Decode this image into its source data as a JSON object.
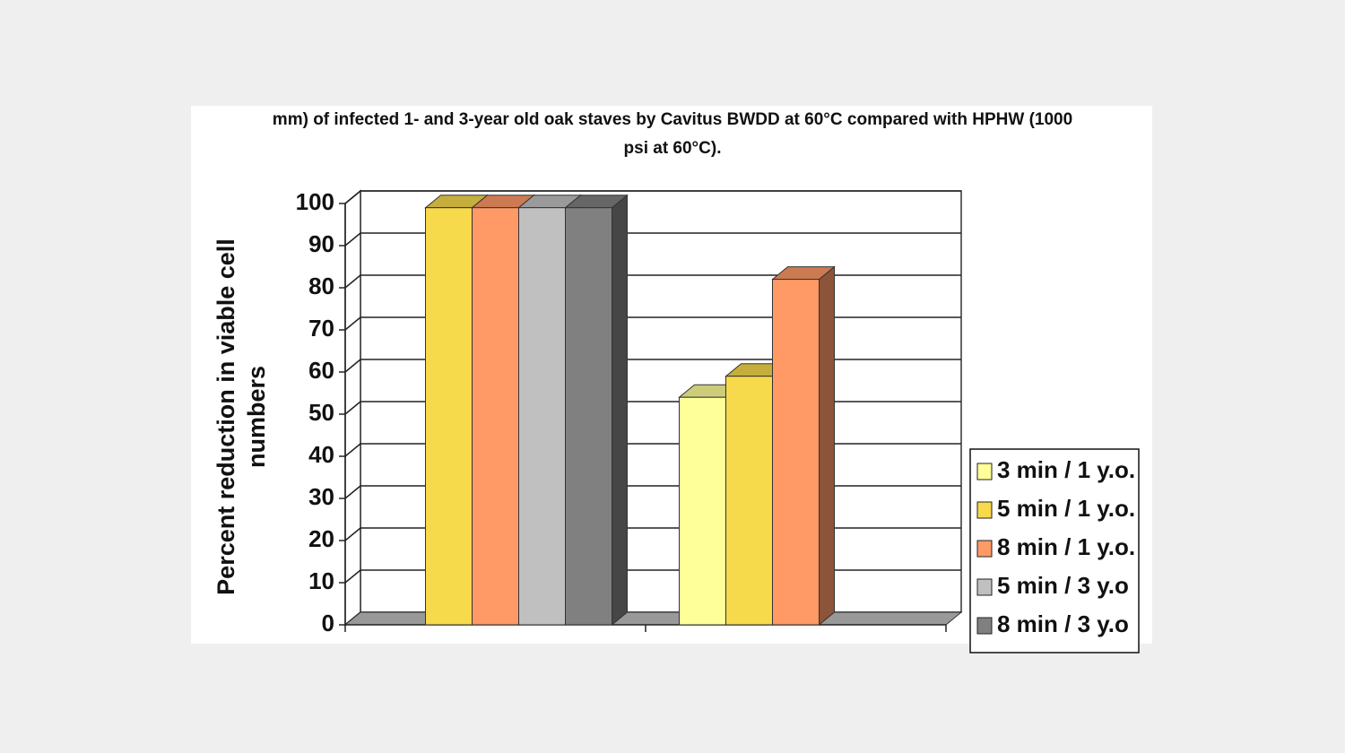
{
  "chart_data": {
    "type": "bar3d",
    "title": "mm) of infected 1- and 3-year old oak staves by Cavitus BWDD at 60°C compared with HPHW (1000 psi at 60°C).",
    "y_label": "Percent reduction in viable cell numbers",
    "categories": [
      null,
      null
    ],
    "series": [
      {
        "name": "3 min / 1 y.o.",
        "color": "#ffff99",
        "values": [
          null,
          54
        ]
      },
      {
        "name": "5 min / 1 y.o.",
        "color": "#f7d94c",
        "values": [
          99,
          59
        ]
      },
      {
        "name": "8 min / 1 y.o.",
        "color": "#ff9966",
        "values": [
          99,
          82
        ]
      },
      {
        "name": "5 min / 3 y.o",
        "color": "#c0c0c0",
        "values": [
          99,
          null
        ]
      },
      {
        "name": "8 min / 3 y.o",
        "color": "#808080",
        "values": [
          99,
          null
        ]
      }
    ],
    "ylim": [
      0,
      100
    ],
    "yticks": [
      0,
      10,
      20,
      30,
      40,
      50,
      60,
      70,
      80,
      90,
      100
    ],
    "grid": true,
    "legend": "bottom-right"
  }
}
